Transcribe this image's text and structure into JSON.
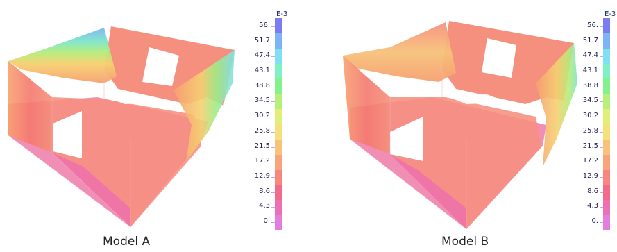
{
  "panels": [
    {
      "caption": "Model A",
      "scale": {
        "unit": "E-3",
        "ticks": [
          "56.",
          "51.7",
          "47.4",
          "43.1",
          "38.8",
          "34.5",
          "30.2",
          "25.8",
          "21.5",
          "17.2",
          "12.9",
          "8.6",
          "4.3",
          "0."
        ]
      }
    },
    {
      "caption": "Model B",
      "scale": {
        "unit": "E-3",
        "ticks": [
          "56.",
          "51.7",
          "47.4",
          "43.1",
          "38.8",
          "34.5",
          "30.2",
          "25.8",
          "21.5",
          "17.2",
          "12.9",
          "8.6",
          "4.3",
          "0."
        ]
      }
    }
  ],
  "colors": {
    "band_colors": [
      "#7a7cf2",
      "#7db4f6",
      "#7ee0f0",
      "#7ef2c4",
      "#84f28c",
      "#b6f07a",
      "#e0ef76",
      "#f6e07a",
      "#f8c27a",
      "#f9a47a",
      "#f7867c",
      "#f46a8a",
      "#ee70b4",
      "#e27ee0"
    ],
    "mesh_pink": "#f07aa8",
    "mesh_salmon": "#f6907e"
  }
}
